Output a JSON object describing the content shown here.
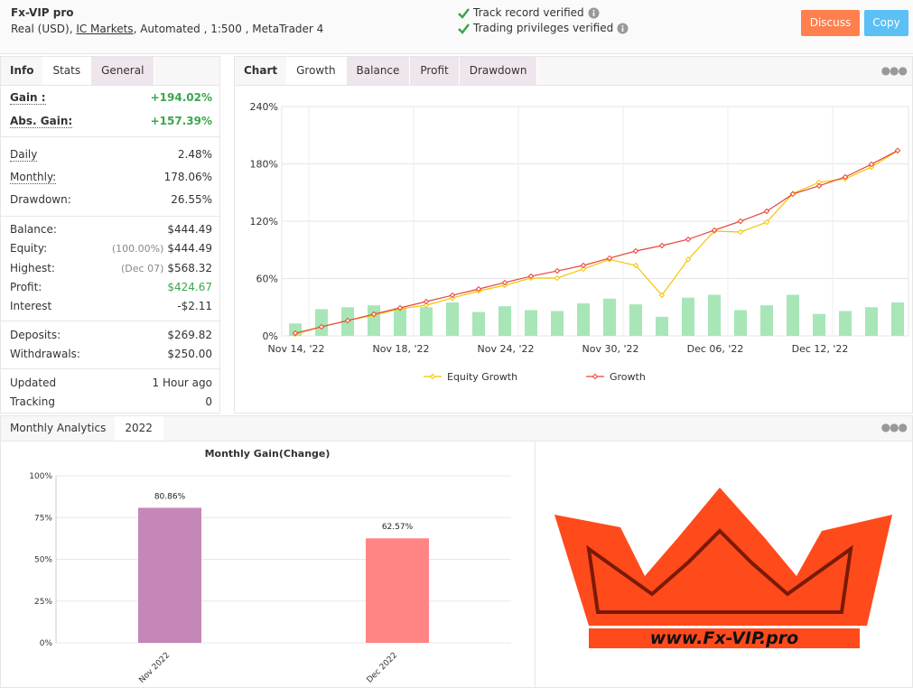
{
  "header": {
    "title": "Fx-VIP pro",
    "account_type": "Real (USD)",
    "broker": "IC Markets",
    "details": ", Automated , 1:500 , MetaTrader 4",
    "verifications": [
      "Track record verified",
      "Trading privileges verified"
    ],
    "buttons": [
      "Discuss",
      "Copy"
    ]
  },
  "stats_panel": {
    "label": "Info",
    "tabs": [
      "Stats",
      "General"
    ],
    "groups": [
      [
        {
          "label": "Gain :",
          "value": "+194.02%",
          "color": "#3aa64c"
        },
        {
          "label": "Abs. Gain:",
          "value": "+157.39%",
          "color": "#3aa64c"
        }
      ],
      [
        {
          "label": "Daily",
          "value": "2.48%"
        },
        {
          "label": "Monthly:",
          "value": "178.06%"
        },
        {
          "label": "Drawdown:",
          "value": "26.55%"
        }
      ],
      [
        {
          "label": "Balance:",
          "value": "$444.49"
        },
        {
          "label": "Equity:",
          "note": "(100.00%)",
          "value": "$444.49"
        },
        {
          "label": "Highest:",
          "note": "(Dec 07)",
          "value": "$568.32"
        },
        {
          "label": "Profit:",
          "value": "$424.67",
          "color": "#3aa64c"
        },
        {
          "label": "Interest",
          "value": "-$2.11"
        }
      ],
      [
        {
          "label": "Deposits:",
          "value": "$269.82"
        },
        {
          "label": "Withdrawals:",
          "value": "$250.00"
        }
      ],
      [
        {
          "label": "Updated",
          "value": "1 Hour ago"
        },
        {
          "label": "Tracking",
          "value": "0"
        }
      ]
    ]
  },
  "chart_panel": {
    "label": "Chart",
    "tabs": [
      "Growth",
      "Balance",
      "Profit",
      "Drawdown"
    ]
  },
  "monthly_panel": {
    "label": "Monthly Analytics",
    "tabs": [
      "2022"
    ]
  },
  "logo": {
    "text": "www.Fx-VIP.pro"
  },
  "chart_data": [
    {
      "type": "line",
      "categories": [
        "Nov 14, '22",
        null,
        null,
        null,
        "Nov 18, '22",
        null,
        null,
        null,
        "Nov 24, '22",
        null,
        null,
        null,
        "Nov 30, '22",
        null,
        null,
        null,
        "Dec 06, '22",
        null,
        null,
        null,
        "Dec 12, '22",
        null,
        null,
        null
      ],
      "series": [
        {
          "name": "Equity Growth",
          "color": "#f5c400",
          "values": [
            1.9,
            9.5,
            16,
            21.7,
            28.4,
            32,
            39.7,
            47,
            52.9,
            60.5,
            60.5,
            70,
            80,
            73.7,
            42.5,
            80,
            109.6,
            108.7,
            119,
            149,
            160.7,
            164.4,
            176.7,
            193.7
          ]
        },
        {
          "name": "Growth",
          "color": "#e8443a",
          "values": [
            2.8,
            9.5,
            16,
            22.7,
            29.3,
            35.9,
            42.5,
            49,
            55.8,
            62.4,
            68,
            73.7,
            81.3,
            88.8,
            94.5,
            101,
            110.6,
            120,
            130.4,
            148.4,
            157,
            166.3,
            179.6,
            194
          ]
        }
      ],
      "bars": {
        "color": "#a8e6b8",
        "values": [
          13,
          28,
          30,
          32,
          29,
          30,
          35,
          25,
          31,
          27,
          26,
          34,
          39,
          33,
          20,
          40,
          43,
          27,
          32,
          43,
          23,
          26,
          30,
          35
        ]
      },
      "ylim": [
        0,
        240
      ],
      "yticks": [
        {
          "value": 0,
          "label": "0%"
        },
        {
          "value": 60,
          "label": "60%"
        },
        {
          "value": 120,
          "label": "120%"
        },
        {
          "value": 180,
          "label": "180%"
        },
        {
          "value": 240,
          "label": "240%"
        }
      ],
      "grid": true
    },
    {
      "type": "bar",
      "title": "Monthly Gain(Change)",
      "categories": [
        "Nov 2022",
        "Dec 2022"
      ],
      "values": [
        80.86,
        62.57
      ],
      "value_labels": [
        "80.86%",
        "62.57%"
      ],
      "colors": [
        "#c586b8",
        "#ff8585"
      ],
      "ylim": [
        0,
        100
      ],
      "yticks": [
        {
          "value": 0,
          "label": "0%"
        },
        {
          "value": 25,
          "label": "25%"
        },
        {
          "value": 50,
          "label": "50%"
        },
        {
          "value": 75,
          "label": "75%"
        },
        {
          "value": 100,
          "label": "100%"
        }
      ],
      "grid": true
    }
  ]
}
